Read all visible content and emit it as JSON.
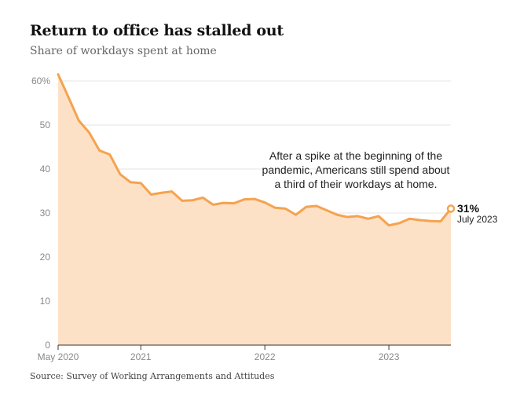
{
  "header": {
    "title": "Return to office has stalled out",
    "subtitle": "Share of workdays spent at home"
  },
  "footer": {
    "source": "Source: Survey of Working Arrangements and Attitudes"
  },
  "annotation": {
    "lines": [
      "After a spike at the beginning of the",
      "pandemic, Americans still spend about",
      "a third of their workdays at home."
    ]
  },
  "end_label": {
    "value": "31%",
    "date": "July 2023"
  },
  "colors": {
    "line": "#f6a24e",
    "area": "#fde1c7",
    "grid": "#e6e6e6",
    "axis": "#333333"
  },
  "chart_data": {
    "type": "area",
    "title": "Return to office has stalled out",
    "subtitle": "Share of workdays spent at home",
    "xlabel": "",
    "ylabel": "",
    "ylim": [
      0,
      60
    ],
    "yticks": [
      0,
      10,
      20,
      30,
      40,
      50,
      60
    ],
    "ytick_labels": [
      "0",
      "10",
      "20",
      "30",
      "40",
      "50",
      "60%"
    ],
    "xticks": [
      {
        "date": "2020-05",
        "label": "May 2020"
      },
      {
        "date": "2021-01",
        "label": "2021"
      },
      {
        "date": "2022-01",
        "label": "2022"
      },
      {
        "date": "2023-01",
        "label": "2023"
      }
    ],
    "grid": true,
    "series": [
      {
        "x": [
          "2020-05",
          "2020-06",
          "2020-07",
          "2020-08",
          "2020-09",
          "2020-10",
          "2020-11",
          "2020-12",
          "2021-01",
          "2021-02",
          "2021-03",
          "2021-04",
          "2021-05",
          "2021-06",
          "2021-07",
          "2021-08",
          "2021-09",
          "2021-10",
          "2021-11",
          "2021-12",
          "2022-01",
          "2022-02",
          "2022-03",
          "2022-04",
          "2022-05",
          "2022-06",
          "2022-07",
          "2022-08",
          "2022-09",
          "2022-10",
          "2022-11",
          "2022-12",
          "2023-01",
          "2023-02",
          "2023-03",
          "2023-04",
          "2023-05",
          "2023-06",
          "2023-07"
        ],
        "values": [
          61.5,
          56.3,
          51.0,
          48.3,
          44.2,
          43.3,
          38.8,
          37.0,
          36.8,
          34.2,
          34.6,
          34.9,
          32.8,
          32.9,
          33.5,
          31.9,
          32.3,
          32.2,
          33.1,
          33.2,
          32.4,
          31.2,
          31.0,
          29.6,
          31.4,
          31.6,
          30.6,
          29.6,
          29.1,
          29.3,
          28.7,
          29.3,
          27.2,
          27.7,
          28.7,
          28.4,
          28.2,
          28.1,
          31.0
        ]
      }
    ]
  }
}
